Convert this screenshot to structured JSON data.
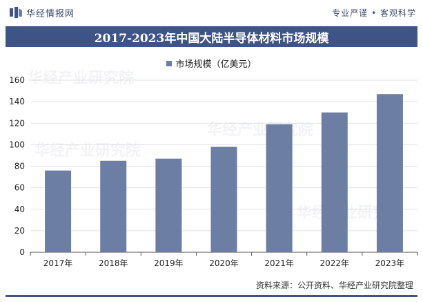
{
  "header": {
    "brand": "华经情报网",
    "slogan": "专业严谨 • 客观科学"
  },
  "chart_data": {
    "type": "bar",
    "title": "2017-2023年中国大陆半导体材料市场规模",
    "categories": [
      "2017年",
      "2018年",
      "2019年",
      "2020年",
      "2021年",
      "2022年",
      "2023年"
    ],
    "series": [
      {
        "name": "市场规模（亿美元）",
        "values": [
          76,
          85,
          87,
          98,
          119,
          130,
          147
        ]
      }
    ],
    "ylim": [
      0,
      160
    ],
    "yticks": [
      0,
      20,
      40,
      60,
      80,
      100,
      120,
      140,
      160
    ],
    "xlabel": "",
    "ylabel": "",
    "legend": "top-center",
    "bar_color": "#6c7ea4"
  },
  "footer": {
    "source": "资料来源：公开资料、华经产业研究院整理"
  },
  "colors": {
    "title_bg": "#3f5486",
    "bar": "#6c7ea4",
    "grid": "#e2e2e2"
  }
}
